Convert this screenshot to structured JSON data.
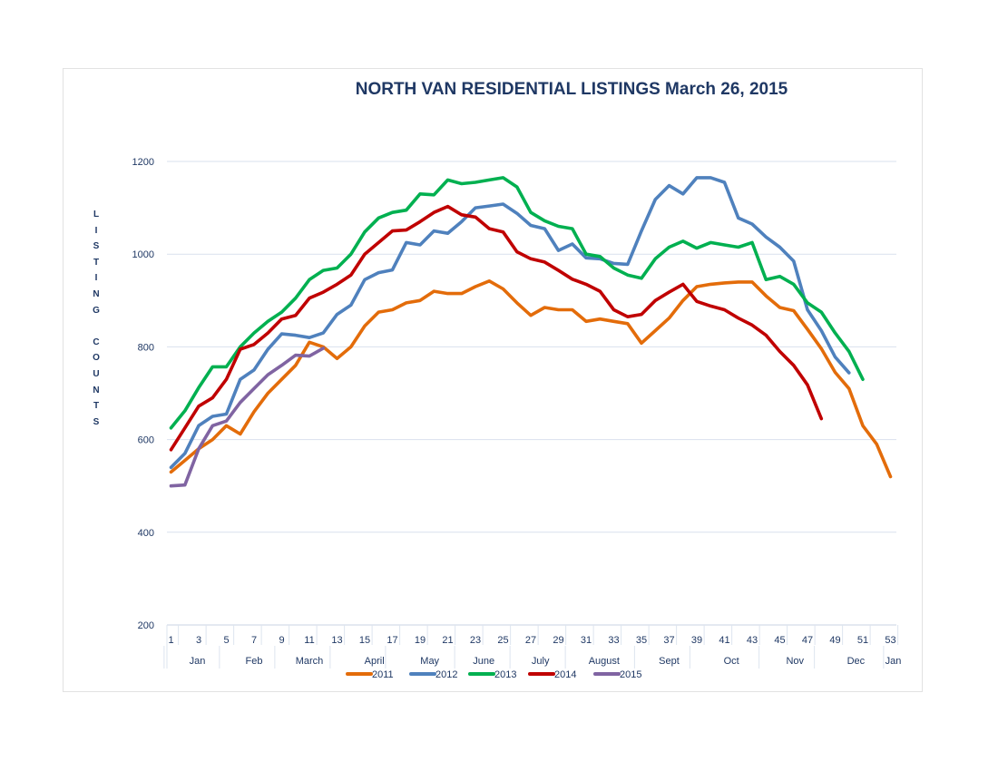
{
  "chart_data": {
    "type": "line",
    "title": "NORTH VAN RESIDENTIAL LISTINGS March 26, 2015",
    "ylabel": "LISTING COUNTS",
    "ylim": [
      200,
      1200
    ],
    "yticks": [
      "200",
      "400",
      "600",
      "800",
      "1000",
      "1200"
    ],
    "xlim": [
      1,
      53
    ],
    "xticks": [
      "1",
      "3",
      "5",
      "7",
      "9",
      "11",
      "13",
      "15",
      "17",
      "19",
      "21",
      "23",
      "25",
      "27",
      "29",
      "31",
      "33",
      "35",
      "37",
      "39",
      "41",
      "43",
      "45",
      "47",
      "49",
      "51",
      "53"
    ],
    "months": [
      {
        "label": "Jan",
        "center": 2.9
      },
      {
        "label": "Feb",
        "center": 7.0
      },
      {
        "label": "March",
        "center": 11.0
      },
      {
        "label": "April",
        "center": 15.7
      },
      {
        "label": "May",
        "center": 19.7
      },
      {
        "label": "June",
        "center": 23.6
      },
      {
        "label": "July",
        "center": 27.7
      },
      {
        "label": "August",
        "center": 32.3
      },
      {
        "label": "Sept",
        "center": 37.0
      },
      {
        "label": "Oct",
        "center": 41.5
      },
      {
        "label": "Nov",
        "center": 46.1
      },
      {
        "label": "Dec",
        "center": 50.5
      },
      {
        "label": "Jan",
        "center": 53.2
      }
    ],
    "month_separators": [
      0.5,
      4.5,
      8.5,
      12.5,
      16.5,
      21.5,
      25.5,
      29.5,
      34.5,
      38.5,
      43.5,
      47.5,
      52.5
    ],
    "grid": true,
    "legend_position": "bottom",
    "series": [
      {
        "name": "2011",
        "color": "#e36c0a",
        "x_start": 1,
        "values": [
          530,
          555,
          580,
          600,
          630,
          612,
          660,
          700,
          730,
          760,
          810,
          800,
          775,
          800,
          845,
          875,
          880,
          895,
          900,
          920,
          915,
          915,
          930,
          942,
          925,
          895,
          868,
          885,
          880,
          880,
          855,
          860,
          855,
          850,
          808,
          835,
          862,
          900,
          930,
          935,
          938,
          940,
          940,
          910,
          885,
          878,
          838,
          796,
          745,
          710,
          630,
          590,
          520
        ]
      },
      {
        "name": "2012",
        "color": "#4f81bd",
        "x_start": 1,
        "values": [
          540,
          570,
          630,
          650,
          655,
          730,
          750,
          795,
          828,
          825,
          820,
          830,
          870,
          890,
          945,
          960,
          966,
          1025,
          1020,
          1050,
          1045,
          1070,
          1100,
          1104,
          1108,
          1088,
          1062,
          1055,
          1008,
          1022,
          992,
          990,
          980,
          978,
          1050,
          1118,
          1148,
          1130,
          1165,
          1165,
          1155,
          1078,
          1065,
          1037,
          1015,
          985,
          880,
          835,
          778,
          744
        ]
      },
      {
        "name": "2013",
        "color": "#00b050",
        "x_start": 1,
        "values": [
          625,
          662,
          712,
          757,
          757,
          800,
          830,
          855,
          875,
          905,
          945,
          965,
          970,
          1000,
          1048,
          1078,
          1090,
          1095,
          1130,
          1128,
          1160,
          1152,
          1155,
          1160,
          1165,
          1145,
          1090,
          1072,
          1060,
          1055,
          1000,
          995,
          970,
          955,
          948,
          990,
          1015,
          1028,
          1013,
          1025,
          1020,
          1015,
          1025,
          945,
          952,
          935,
          895,
          875,
          830,
          790,
          730
        ]
      },
      {
        "name": "2014",
        "color": "#c00000",
        "x_start": 1,
        "values": [
          578,
          625,
          672,
          690,
          730,
          795,
          805,
          830,
          860,
          868,
          905,
          918,
          935,
          955,
          1000,
          1025,
          1050,
          1052,
          1070,
          1090,
          1103,
          1085,
          1080,
          1055,
          1048,
          1005,
          990,
          983,
          965,
          946,
          935,
          920,
          880,
          865,
          870,
          900,
          918,
          935,
          898,
          888,
          880,
          862,
          847,
          825,
          790,
          760,
          718,
          645
        ]
      },
      {
        "name": "2015",
        "color": "#8064a2",
        "x_start": 1,
        "values": [
          500,
          502,
          580,
          630,
          640,
          680,
          710,
          740,
          760,
          782,
          780,
          797
        ]
      }
    ]
  }
}
